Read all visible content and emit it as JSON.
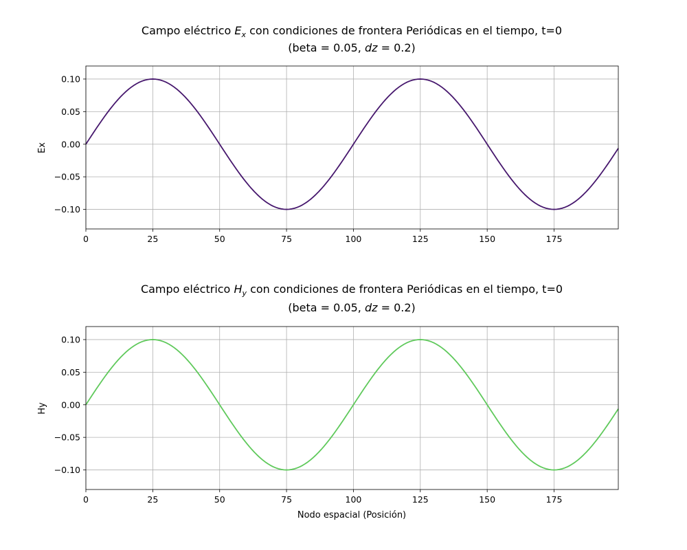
{
  "chart_data": [
    {
      "type": "line",
      "title_line1_pre": "Campo eléctrico ",
      "title_sym": "E",
      "title_sub": "x",
      "title_line1_post": " con condiciones de frontera Periódicas en el tiempo, t=0",
      "title_line2_pre": "(beta = 0.05, ",
      "title_line2_var": "dz",
      "title_line2_post": " = 0.2)",
      "xlabel": "",
      "ylabel": "Ex",
      "xlim": [
        0,
        199
      ],
      "ylim": [
        -0.13,
        0.12
      ],
      "xticks": [
        0,
        25,
        50,
        75,
        100,
        125,
        150,
        175
      ],
      "xtick_labels": [
        "0",
        "25",
        "50",
        "75",
        "100",
        "125",
        "150",
        "175"
      ],
      "yticks": [
        -0.1,
        -0.05,
        0.0,
        0.05,
        0.1
      ],
      "ytick_labels": [
        "−0.10",
        "−0.05",
        "0.00",
        "0.05",
        "0.10"
      ],
      "grid": true,
      "series": [
        {
          "function": "0.1*sin(2*pi*x/100)",
          "x_start": 0,
          "x_end": 199,
          "x_step": 1,
          "color": "#46176d"
        }
      ]
    },
    {
      "type": "line",
      "title_line1_pre": "Campo eléctrico ",
      "title_sym": "H",
      "title_sub": "y",
      "title_line1_post": " con condiciones de frontera Periódicas en el tiempo, t=0",
      "title_line2_pre": "(beta = 0.05, ",
      "title_line2_var": "dz",
      "title_line2_post": " = 0.2)",
      "xlabel": "Nodo espacial (Posición)",
      "ylabel": "Hy",
      "xlim": [
        0,
        199
      ],
      "ylim": [
        -0.13,
        0.12
      ],
      "xticks": [
        0,
        25,
        50,
        75,
        100,
        125,
        150,
        175
      ],
      "xtick_labels": [
        "0",
        "25",
        "50",
        "75",
        "100",
        "125",
        "150",
        "175"
      ],
      "yticks": [
        -0.1,
        -0.05,
        0.0,
        0.05,
        0.1
      ],
      "ytick_labels": [
        "−0.10",
        "−0.05",
        "0.00",
        "0.05",
        "0.10"
      ],
      "grid": true,
      "series": [
        {
          "function": "0.1*sin(2*pi*x/100)",
          "x_start": 0,
          "x_end": 199,
          "x_step": 1,
          "color": "#5fc95b"
        }
      ]
    }
  ]
}
